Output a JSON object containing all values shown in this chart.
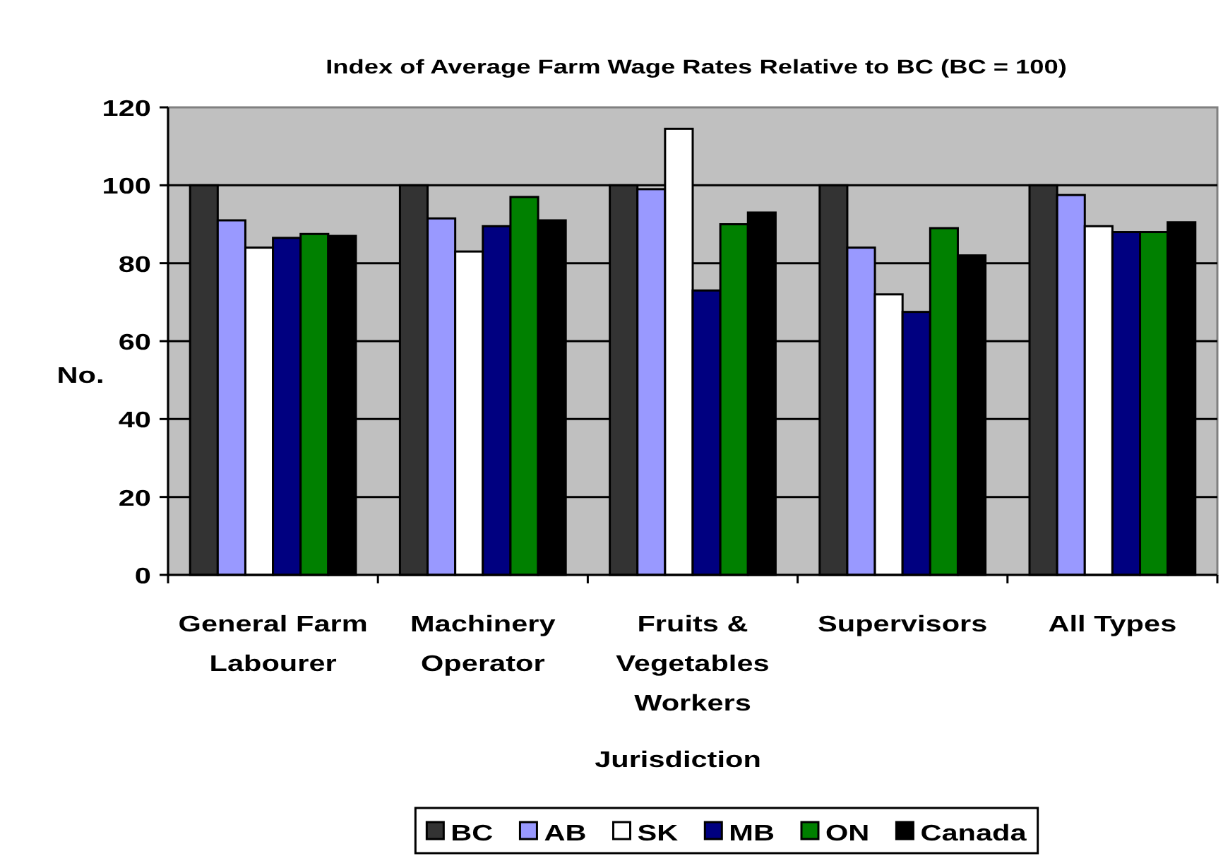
{
  "chart_data": {
    "type": "bar",
    "title": "Index of Average Farm Wage Rates Relative to BC (BC = 100)",
    "xlabel": "Jurisdiction",
    "ylabel": "No.",
    "categories": [
      "General Farm Labourer",
      "Machinery Operator",
      "Fruits & Vegetables Workers",
      "Supervisors",
      "All Types"
    ],
    "series": [
      {
        "name": "BC",
        "color": "#333333",
        "values": [
          100,
          100,
          100,
          100,
          100
        ]
      },
      {
        "name": "AB",
        "color": "#9999ff",
        "values": [
          91,
          91.5,
          99,
          84,
          97.5
        ]
      },
      {
        "name": "SK",
        "color": "#ffffff",
        "values": [
          84,
          83,
          114.5,
          72,
          89.5
        ]
      },
      {
        "name": "MB",
        "color": "#000080",
        "values": [
          86.5,
          89.5,
          73,
          67.5,
          88
        ]
      },
      {
        "name": "ON",
        "color": "#008000",
        "values": [
          87.5,
          97,
          90,
          89,
          88
        ]
      },
      {
        "name": "Canada",
        "color": "#000000",
        "values": [
          87,
          91,
          93,
          82,
          90.5
        ]
      }
    ],
    "ylim": [
      0,
      120
    ],
    "yticks": [
      0,
      20,
      40,
      60,
      80,
      100,
      120
    ],
    "grid": "y",
    "legend": "bottom"
  }
}
